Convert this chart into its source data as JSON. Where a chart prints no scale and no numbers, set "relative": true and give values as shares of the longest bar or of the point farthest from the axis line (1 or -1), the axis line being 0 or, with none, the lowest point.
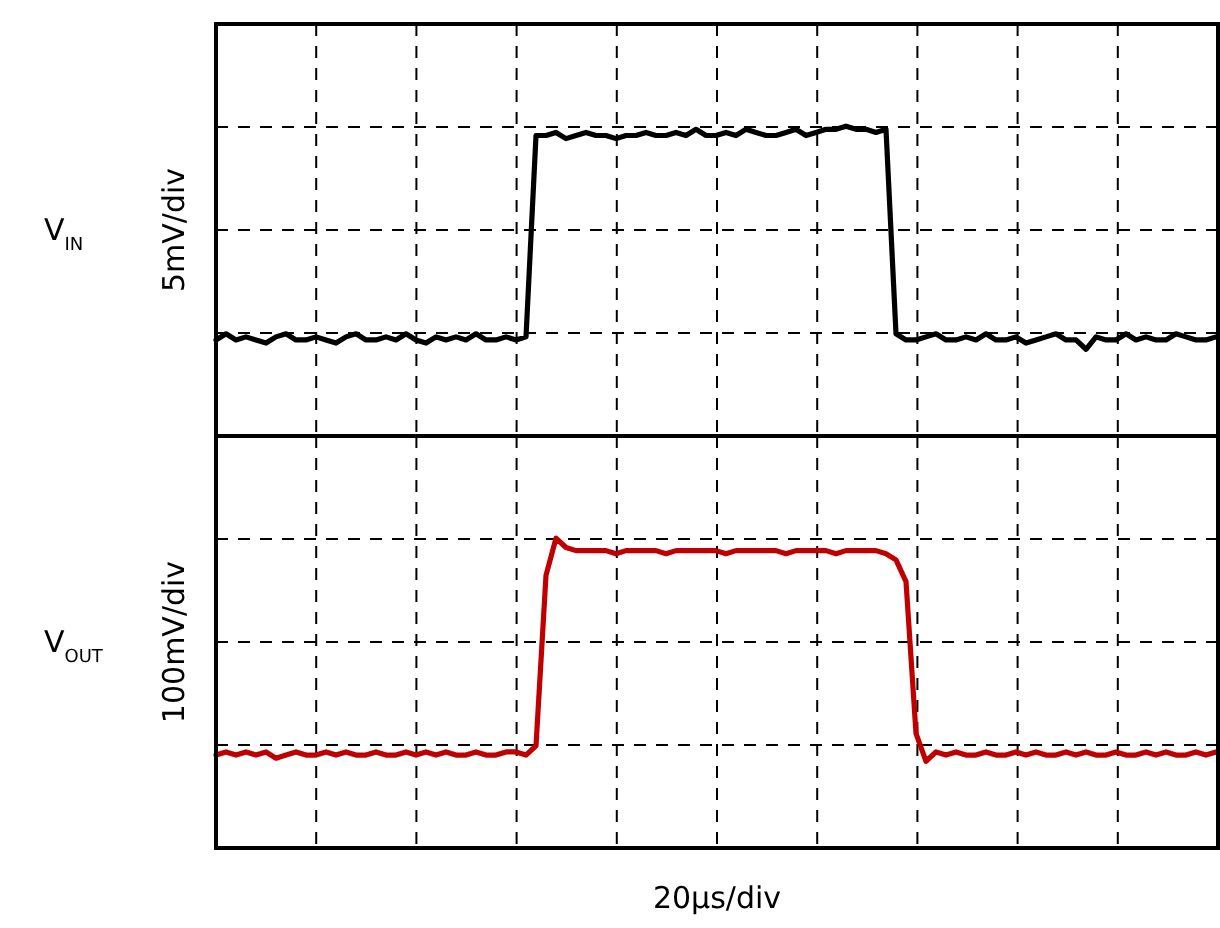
{
  "chart_data": [
    {
      "type": "line",
      "relative": true,
      "ylabel": "5mV/div",
      "annotations": [
        "V$_{IN}$"
      ],
      "grid": true,
      "line_style": "solid",
      "categories": [
        null,
        null,
        null,
        null,
        null,
        null,
        null,
        null,
        null,
        null,
        null,
        null,
        null,
        null,
        null,
        null,
        null,
        null,
        null,
        null,
        null,
        null,
        null,
        null,
        null,
        null,
        null,
        null,
        null,
        null,
        null,
        null,
        null,
        null,
        null,
        null,
        null,
        null,
        null,
        null,
        null,
        null,
        null,
        null,
        null,
        null,
        null,
        null,
        null,
        null,
        null,
        null,
        null,
        null,
        null,
        null,
        null,
        null,
        null,
        null,
        null,
        null,
        null,
        null,
        null,
        null,
        null,
        null,
        null,
        null,
        null,
        null,
        null,
        null,
        null,
        null,
        null,
        null,
        null,
        null,
        null,
        null,
        null,
        null,
        null,
        null,
        null,
        null,
        null,
        null,
        null,
        null,
        null,
        null,
        null,
        null,
        null,
        null,
        null,
        null,
        null
      ],
      "series": [
        {
          "color": "#000000",
          "values": [
            0.31,
            0.33,
            0.31,
            0.32,
            0.31,
            0.3,
            0.32,
            0.33,
            0.31,
            0.31,
            0.32,
            0.31,
            0.3,
            0.32,
            0.33,
            0.31,
            0.31,
            0.32,
            0.31,
            0.33,
            0.31,
            0.3,
            0.32,
            0.31,
            0.32,
            0.31,
            0.33,
            0.31,
            0.31,
            0.32,
            0.31,
            0.32,
            0.97,
            0.97,
            0.98,
            0.96,
            0.97,
            0.98,
            0.97,
            0.97,
            0.96,
            0.97,
            0.97,
            0.98,
            0.97,
            0.97,
            0.98,
            0.97,
            0.99,
            0.97,
            0.97,
            0.98,
            0.97,
            0.99,
            0.98,
            0.97,
            0.97,
            0.98,
            0.99,
            0.97,
            0.98,
            0.99,
            0.99,
            1,
            0.99,
            0.99,
            0.98,
            0.99,
            0.33,
            0.31,
            0.31,
            0.32,
            0.33,
            0.31,
            0.31,
            0.32,
            0.31,
            0.33,
            0.31,
            0.31,
            0.32,
            0.3,
            0.31,
            0.32,
            0.33,
            0.31,
            0.31,
            0.28,
            0.32,
            0.31,
            0.31,
            0.33,
            0.31,
            0.32,
            0.31,
            0.31,
            0.33,
            0.32,
            0.31,
            0.31,
            0.32
          ]
        }
      ]
    },
    {
      "type": "line",
      "relative": true,
      "ylabel": "100mV/div",
      "xlabel": "20µs/div",
      "annotations": [
        "V$_{OUT}$"
      ],
      "grid": true,
      "line_style": "solid",
      "categories": [
        null,
        null,
        null,
        null,
        null,
        null,
        null,
        null,
        null,
        null,
        null,
        null,
        null,
        null,
        null,
        null,
        null,
        null,
        null,
        null,
        null,
        null,
        null,
        null,
        null,
        null,
        null,
        null,
        null,
        null,
        null,
        null,
        null,
        null,
        null,
        null,
        null,
        null,
        null,
        null,
        null,
        null,
        null,
        null,
        null,
        null,
        null,
        null,
        null,
        null,
        null,
        null,
        null,
        null,
        null,
        null,
        null,
        null,
        null,
        null,
        null,
        null,
        null,
        null,
        null,
        null,
        null,
        null,
        null,
        null,
        null,
        null,
        null,
        null,
        null,
        null,
        null,
        null,
        null,
        null,
        null,
        null,
        null,
        null,
        null,
        null,
        null,
        null,
        null,
        null,
        null,
        null,
        null,
        null,
        null,
        null,
        null,
        null,
        null,
        null,
        null
      ],
      "series": [
        {
          "color": "#c00000",
          "values": [
            0.3,
            0.31,
            0.3,
            0.31,
            0.3,
            0.31,
            0.29,
            0.3,
            0.31,
            0.3,
            0.3,
            0.31,
            0.3,
            0.31,
            0.3,
            0.3,
            0.31,
            0.3,
            0.3,
            0.31,
            0.3,
            0.31,
            0.3,
            0.31,
            0.3,
            0.3,
            0.31,
            0.3,
            0.3,
            0.31,
            0.31,
            0.3,
            0.33,
            0.88,
            1,
            0.97,
            0.96,
            0.96,
            0.96,
            0.96,
            0.95,
            0.96,
            0.96,
            0.96,
            0.96,
            0.95,
            0.96,
            0.96,
            0.96,
            0.96,
            0.96,
            0.95,
            0.96,
            0.96,
            0.96,
            0.96,
            0.96,
            0.95,
            0.96,
            0.96,
            0.96,
            0.96,
            0.95,
            0.96,
            0.96,
            0.96,
            0.96,
            0.95,
            0.93,
            0.86,
            0.37,
            0.28,
            0.31,
            0.3,
            0.31,
            0.3,
            0.3,
            0.31,
            0.3,
            0.3,
            0.31,
            0.3,
            0.31,
            0.3,
            0.3,
            0.31,
            0.3,
            0.31,
            0.3,
            0.3,
            0.31,
            0.3,
            0.3,
            0.31,
            0.3,
            0.31,
            0.3,
            0.3,
            0.31,
            0.3,
            0.31
          ]
        }
      ]
    }
  ]
}
